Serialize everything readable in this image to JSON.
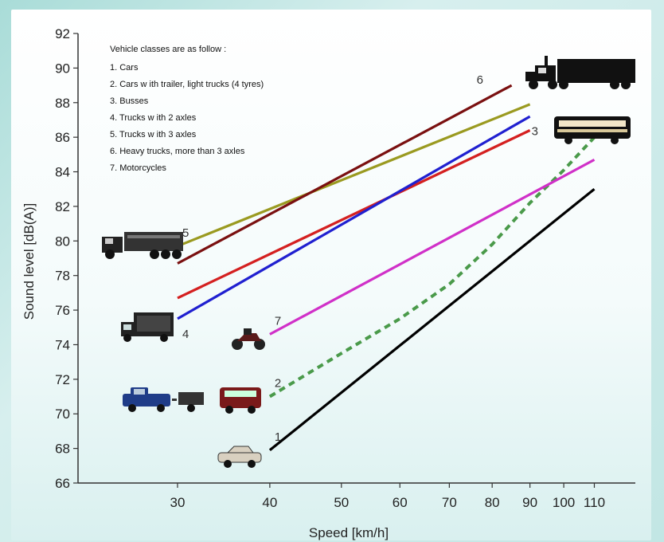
{
  "chart_data": {
    "type": "line",
    "ylabel": "Sound level [dB(A)]",
    "xlabel": "Speed [km/h]",
    "x_scale": "log",
    "xlim": [
      22,
      125
    ],
    "ylim": [
      66,
      92
    ],
    "x_ticks": [
      30,
      40,
      50,
      60,
      70,
      80,
      90,
      100,
      110
    ],
    "y_ticks": [
      66,
      68,
      70,
      72,
      74,
      76,
      78,
      80,
      82,
      84,
      86,
      88,
      90,
      92
    ],
    "grid": false,
    "legend": {
      "placement": "top-left",
      "title": "Vehicle classes are as follow :",
      "items": [
        "1. Cars",
        "2. Cars w ith trailer, light trucks (4 tyres)",
        "3. Busses",
        "4. Trucks w ith 2 axles",
        "5. Trucks w ith 3 axles",
        "6. Heavy trucks, more than 3 axles",
        "7. Motorcycles"
      ]
    },
    "series": [
      {
        "label": "1",
        "color": "#000000",
        "dashed": false,
        "x": [
          40,
          110
        ],
        "y": [
          67.9,
          83.0
        ]
      },
      {
        "label": "2",
        "color": "#4a9a4a",
        "dashed": true,
        "x": [
          40,
          50,
          60,
          70,
          80,
          90,
          100,
          110
        ],
        "y": [
          71.0,
          73.5,
          75.5,
          77.5,
          79.8,
          82.2,
          84.1,
          86.0
        ]
      },
      {
        "label": "3",
        "color": "#d42020",
        "dashed": false,
        "x": [
          30,
          90
        ],
        "y": [
          76.7,
          86.4
        ]
      },
      {
        "label": "4",
        "color": "#2020d0",
        "dashed": false,
        "x": [
          30,
          90
        ],
        "y": [
          75.5,
          87.2
        ]
      },
      {
        "label": "5",
        "color": "#9a9a20",
        "dashed": false,
        "x": [
          30,
          90
        ],
        "y": [
          79.7,
          87.9
        ]
      },
      {
        "label": "6",
        "color": "#7a1010",
        "dashed": false,
        "x": [
          30,
          85
        ],
        "y": [
          78.7,
          89.0
        ]
      },
      {
        "label": "7",
        "color": "#d030c8",
        "dashed": false,
        "x": [
          40,
          110
        ],
        "y": [
          74.6,
          84.7
        ]
      }
    ],
    "label_offsets_note_free": true
  },
  "icons": [
    {
      "name": "heavy-truck-icon",
      "series": "6"
    },
    {
      "name": "bus-icon",
      "series": "3"
    },
    {
      "name": "three-axle-truck-icon",
      "series": "5"
    },
    {
      "name": "two-axle-truck-icon",
      "series": "4"
    },
    {
      "name": "motorcycle-icon",
      "series": "7"
    },
    {
      "name": "pickup-with-trailer-icon",
      "series": "2"
    },
    {
      "name": "van-icon",
      "series": "2"
    },
    {
      "name": "car-icon",
      "series": "1"
    }
  ]
}
